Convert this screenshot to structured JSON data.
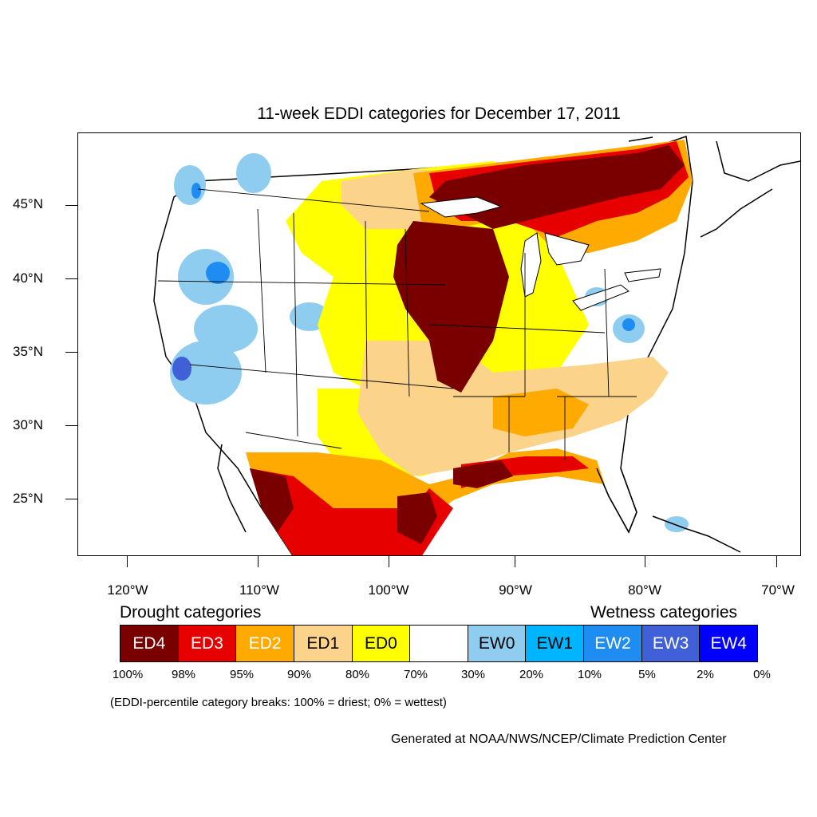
{
  "title": "11-week EDDI categories for December 17, 2011",
  "map": {
    "lat_labels": [
      "45°N",
      "40°N",
      "35°N",
      "30°N",
      "25°N"
    ],
    "lon_labels": [
      "120°W",
      "110°W",
      "100°W",
      "90°W",
      "80°W",
      "70°W"
    ]
  },
  "legend": {
    "drought_heading": "Drought categories",
    "wetness_heading": "Wetness categories",
    "categories": [
      {
        "label": "ED4",
        "color": "#7a0000",
        "text_color": "#ffffff"
      },
      {
        "label": "ED3",
        "color": "#e60000",
        "text_color": "#ffffff"
      },
      {
        "label": "ED2",
        "color": "#ffaa00",
        "text_color": "#ffffff"
      },
      {
        "label": "ED1",
        "color": "#fcd38a",
        "text_color": "#000000"
      },
      {
        "label": "ED0",
        "color": "#ffff00",
        "text_color": "#000000"
      },
      {
        "label": "",
        "color": "#ffffff",
        "text_color": "#000000"
      },
      {
        "label": "EW0",
        "color": "#8ecdf0",
        "text_color": "#000000"
      },
      {
        "label": "EW1",
        "color": "#00b5ff",
        "text_color": "#000000"
      },
      {
        "label": "EW2",
        "color": "#1e8cf0",
        "text_color": "#ffffff"
      },
      {
        "label": "EW3",
        "color": "#4060d8",
        "text_color": "#ffffff"
      },
      {
        "label": "EW4",
        "color": "#0000ff",
        "text_color": "#ffffff"
      }
    ],
    "percent_breaks": [
      "100%",
      "98%",
      "95%",
      "90%",
      "80%",
      "70%",
      "30%",
      "20%",
      "10%",
      "5%",
      "2%",
      "0%"
    ]
  },
  "note": "(EDDI-percentile category breaks: 100% = driest; 0% = wettest)",
  "credit": "Generated at NOAA/NWS/NCEP/Climate Prediction Center"
}
